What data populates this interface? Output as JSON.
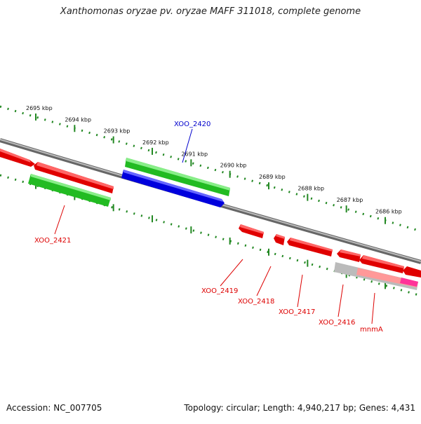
{
  "title": "Xanthomonas oryzae pv. oryzae MAFF 311018, complete genome",
  "accession_text": "Accession: NC_007705",
  "summary_text": "Topology: circular; Length: 4,940,217 bp; Genes: 4,431",
  "scale": {
    "unit": "kbp",
    "labels": [
      "2695 kbp",
      "2694 kbp",
      "2693 kbp",
      "2692 kbp",
      "2691 kbp",
      "2690 kbp",
      "2689 kbp",
      "2688 kbp",
      "2687 kbp",
      "2686 kbp"
    ]
  },
  "colors": {
    "forward_gene": "#33cc33",
    "reverse_gene": "#ff0000",
    "highlighted_gene": "#0000ff",
    "backbone": "#888888",
    "ticks": "#228822",
    "rna": "#ff3399",
    "label_forward": "#0000cc",
    "label_reverse": "#dd0000"
  },
  "genes": [
    {
      "name": "XOO_2420",
      "strand": "forward",
      "highlighted": true
    },
    {
      "name": "XOO_2421",
      "strand": "reverse"
    },
    {
      "name": "XOO_2419",
      "strand": "reverse"
    },
    {
      "name": "XOO_2418",
      "strand": "reverse"
    },
    {
      "name": "XOO_2417",
      "strand": "reverse"
    },
    {
      "name": "XOO_2416",
      "strand": "reverse"
    },
    {
      "name": "mnmA",
      "strand": "reverse"
    }
  ]
}
